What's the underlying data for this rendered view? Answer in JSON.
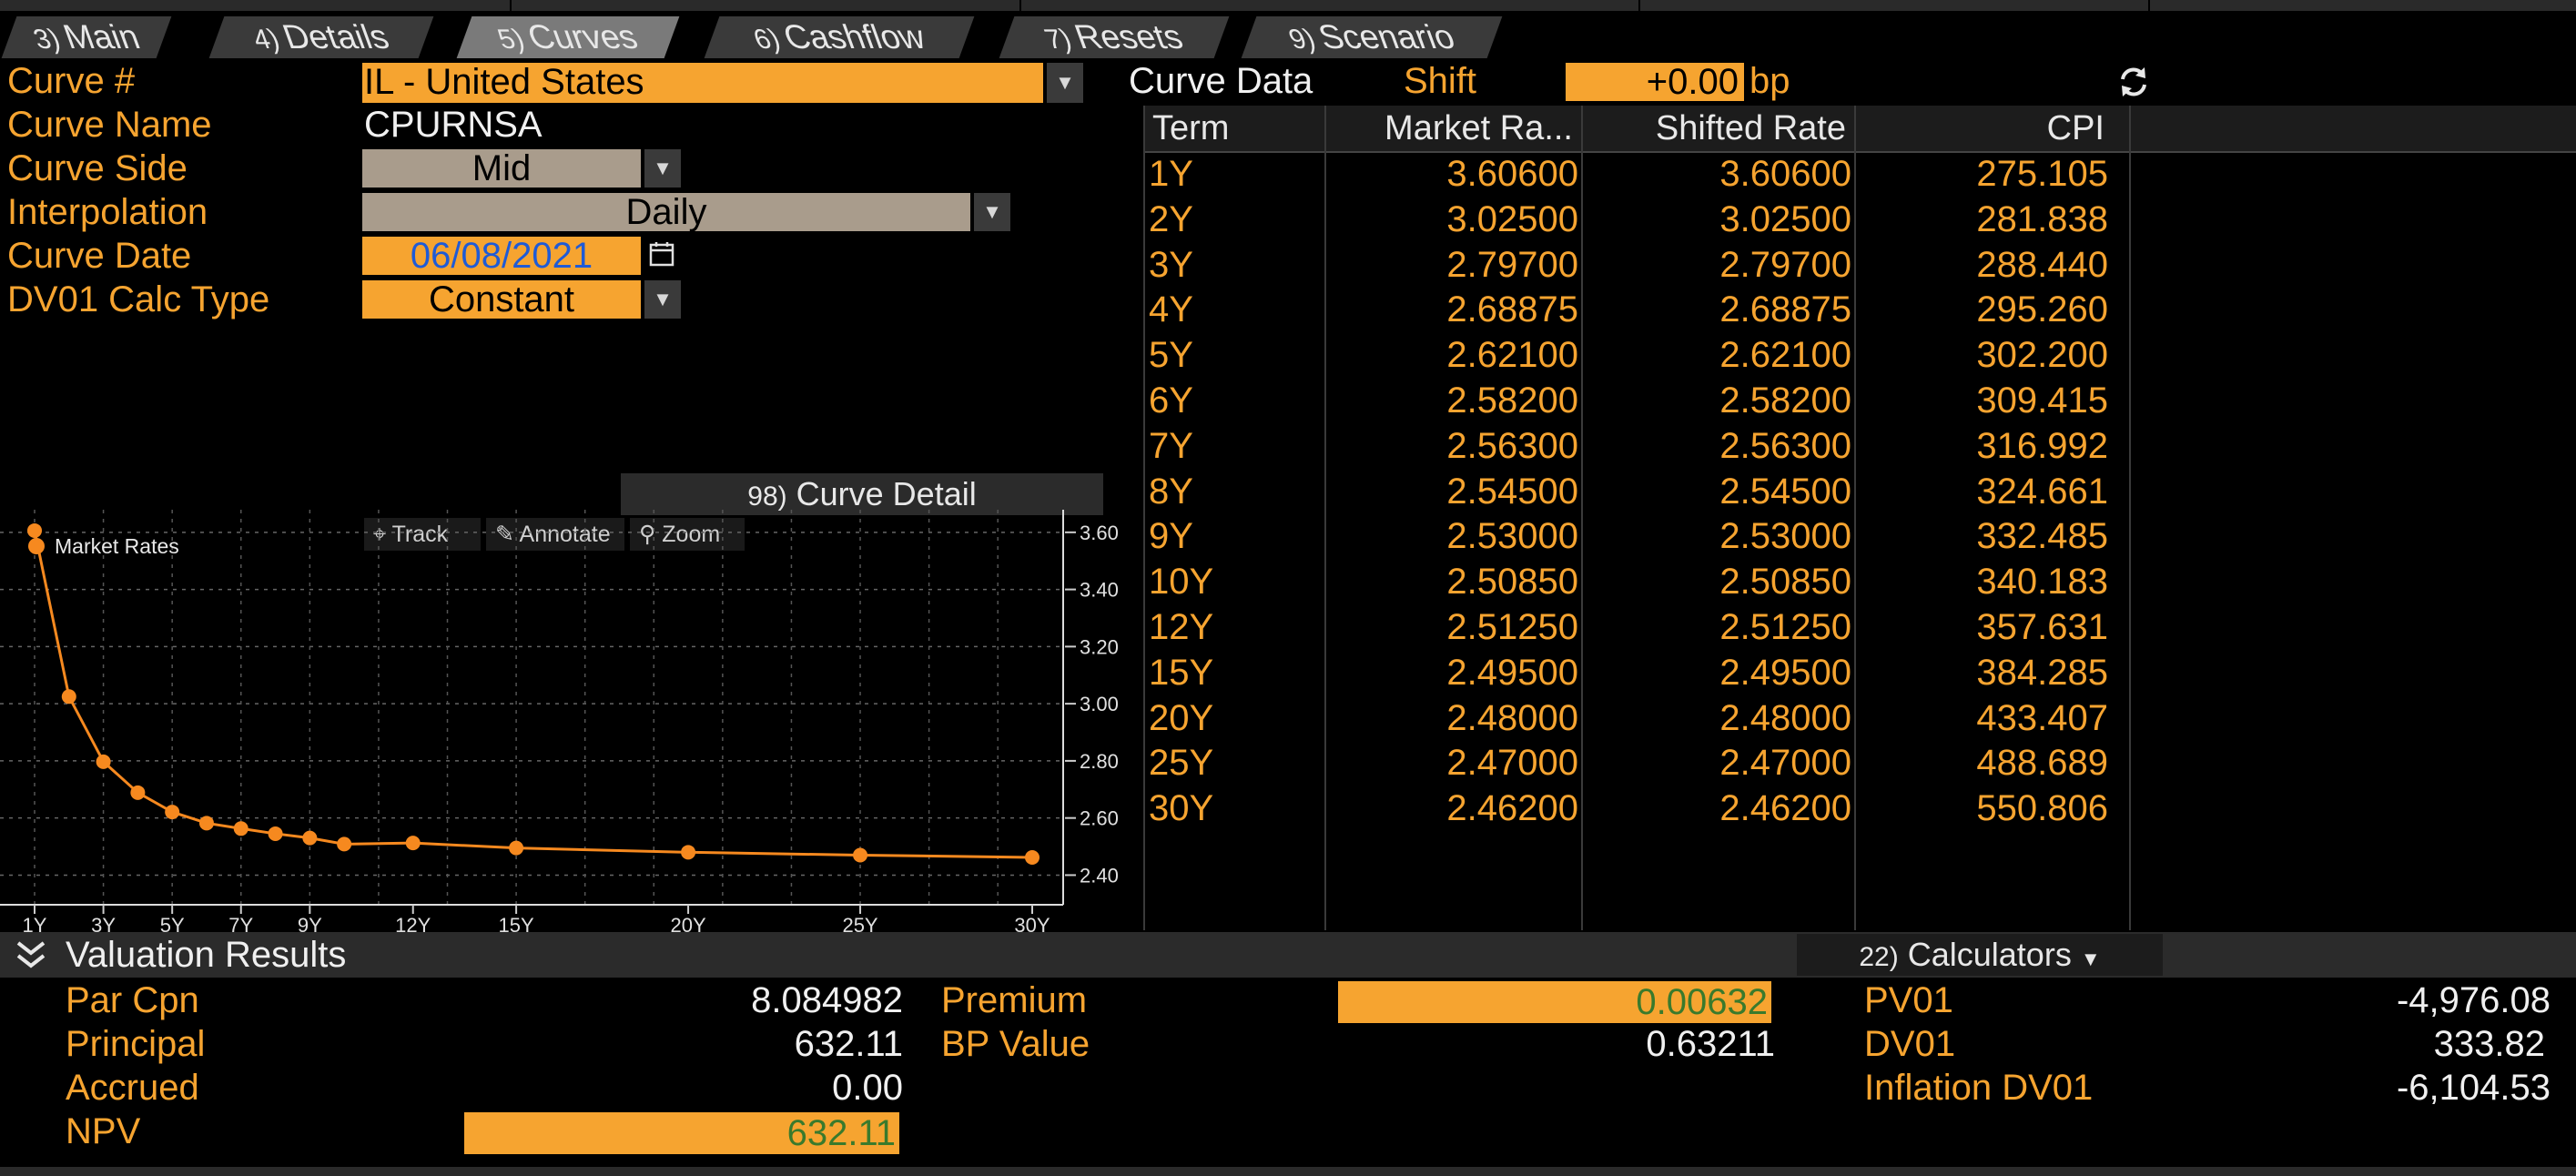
{
  "tabs": [
    {
      "num": "3)",
      "label": "Main"
    },
    {
      "num": "4)",
      "label": "Details"
    },
    {
      "num": "5)",
      "label": "Curves"
    },
    {
      "num": "6)",
      "label": "Cashflow"
    },
    {
      "num": "7)",
      "label": "Resets"
    },
    {
      "num": "9)",
      "label": "Scenario"
    }
  ],
  "active_tab": "Curves",
  "form": {
    "curve_num_label": "Curve #",
    "curve_num_value": "IL - United States",
    "curve_name_label": "Curve Name",
    "curve_name_value": "CPURNSA",
    "curve_side_label": "Curve Side",
    "curve_side_value": "Mid",
    "interpolation_label": "Interpolation",
    "interpolation_value": "Daily",
    "curve_date_label": "Curve Date",
    "curve_date_value": "06/08/2021",
    "dv01_label": "DV01 Calc Type",
    "dv01_value": "Constant"
  },
  "curve_data": {
    "title": "Curve Data",
    "shift_label": "Shift",
    "shift_value": "+0.00",
    "shift_unit": "bp",
    "columns": [
      "Term",
      "Market Ra...",
      "Shifted Rate",
      "CPI"
    ],
    "rows": [
      [
        "1Y",
        "3.60600",
        "3.60600",
        "275.105"
      ],
      [
        "2Y",
        "3.02500",
        "3.02500",
        "281.838"
      ],
      [
        "3Y",
        "2.79700",
        "2.79700",
        "288.440"
      ],
      [
        "4Y",
        "2.68875",
        "2.68875",
        "295.260"
      ],
      [
        "5Y",
        "2.62100",
        "2.62100",
        "302.200"
      ],
      [
        "6Y",
        "2.58200",
        "2.58200",
        "309.415"
      ],
      [
        "7Y",
        "2.56300",
        "2.56300",
        "316.992"
      ],
      [
        "8Y",
        "2.54500",
        "2.54500",
        "324.661"
      ],
      [
        "9Y",
        "2.53000",
        "2.53000",
        "332.485"
      ],
      [
        "10Y",
        "2.50850",
        "2.50850",
        "340.183"
      ],
      [
        "12Y",
        "2.51250",
        "2.51250",
        "357.631"
      ],
      [
        "15Y",
        "2.49500",
        "2.49500",
        "384.285"
      ],
      [
        "20Y",
        "2.48000",
        "2.48000",
        "433.407"
      ],
      [
        "25Y",
        "2.47000",
        "2.47000",
        "488.689"
      ],
      [
        "30Y",
        "2.46200",
        "2.46200",
        "550.806"
      ]
    ]
  },
  "chart_panel": {
    "detail_num": "98)",
    "detail_label": "Curve Detail",
    "track": "Track",
    "annotate": "Annotate",
    "zoom": "Zoom"
  },
  "chart_data": {
    "type": "line",
    "series": [
      {
        "name": "Market Rates",
        "color": "#f6891f",
        "x": [
          1,
          2,
          3,
          4,
          5,
          6,
          7,
          8,
          9,
          10,
          12,
          15,
          20,
          25,
          30
        ],
        "y": [
          3.606,
          3.025,
          2.797,
          2.68875,
          2.621,
          2.582,
          2.563,
          2.545,
          2.53,
          2.5085,
          2.5125,
          2.495,
          2.48,
          2.47,
          2.462
        ]
      }
    ],
    "x_ticks": [
      "1Y",
      "3Y",
      "5Y",
      "7Y",
      "9Y",
      "12Y",
      "15Y",
      "20Y",
      "25Y",
      "30Y"
    ],
    "x_tick_values": [
      1,
      3,
      5,
      7,
      9,
      12,
      15,
      20,
      25,
      30
    ],
    "y_ticks": [
      "3.60",
      "3.40",
      "3.20",
      "3.00",
      "2.80",
      "2.60",
      "2.40"
    ],
    "y_tick_values": [
      3.6,
      3.4,
      3.2,
      3.0,
      2.8,
      2.6,
      2.4
    ],
    "ylim": [
      2.36,
      3.66
    ],
    "xlim": [
      1,
      30
    ],
    "grid": true,
    "legend": "top-left"
  },
  "valuation": {
    "title": "Valuation Results",
    "calculators_num": "22)",
    "calculators_label": "Calculators",
    "par_cpn_label": "Par Cpn",
    "par_cpn_value": "8.084982",
    "principal_label": "Principal",
    "principal_value": "632.11",
    "accrued_label": "Accrued",
    "accrued_value": "0.00",
    "npv_label": "NPV",
    "npv_value": "632.11",
    "premium_label": "Premium",
    "premium_value": "0.00632",
    "bp_value_label": "BP Value",
    "bp_value_value": "0.63211",
    "pv01_label": "PV01",
    "pv01_value": "-4,976.08",
    "dv01_label": "DV01",
    "dv01_value": "333.82",
    "infl_dv01_label": "Inflation DV01",
    "infl_dv01_value": "-6,104.53"
  }
}
